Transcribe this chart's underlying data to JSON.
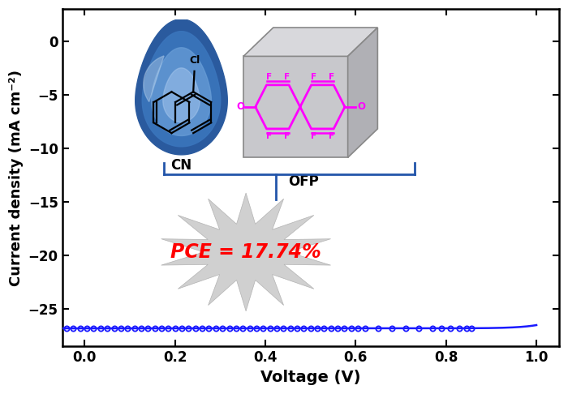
{
  "xlabel": "Voltage (V)",
  "ylabel": "Current density (mA cm⁻²)",
  "xlim": [
    -0.05,
    1.05
  ],
  "ylim": [
    -28.5,
    3
  ],
  "xticks": [
    0.0,
    0.2,
    0.4,
    0.6,
    0.8,
    1.0
  ],
  "yticks": [
    0,
    -5,
    -10,
    -15,
    -20,
    -25
  ],
  "line_color": "#1a1aff",
  "marker_color": "#1a1aff",
  "pce_text": "PCE = 17.74%",
  "pce_color": "#ff0000",
  "bracket_color": "#2255aa",
  "jsc": -26.8,
  "voc": 0.857,
  "diode_n": 1.65,
  "diode_J0": 2e-11
}
